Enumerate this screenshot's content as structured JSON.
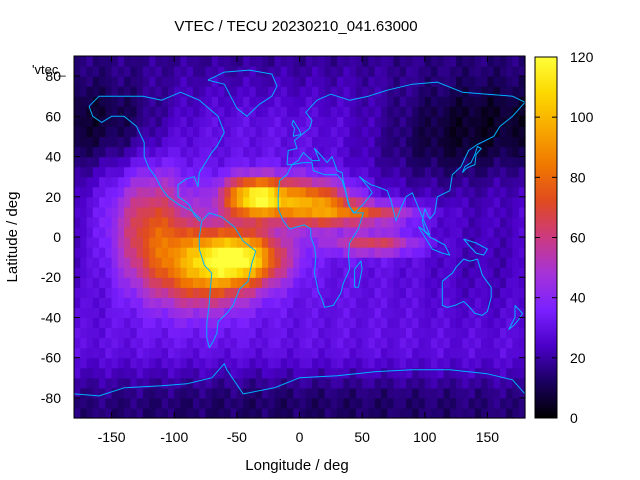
{
  "chart_data": {
    "type": "heatmap",
    "title": "VTEC / TECU 20230210_041.63000",
    "xlabel": "Longitude / deg",
    "ylabel": "Latitude / deg",
    "xlim": [
      -180,
      180
    ],
    "ylim": [
      -90,
      90
    ],
    "x_ticks": [
      -150,
      -100,
      -50,
      0,
      50,
      100,
      150
    ],
    "y_ticks": [
      80,
      60,
      40,
      20,
      0,
      -20,
      -40,
      -60,
      -80
    ],
    "legend_entry": "'vtec_",
    "legend_position": "top-left",
    "colorbar": {
      "min": 0,
      "max": 120,
      "ticks": [
        0,
        20,
        40,
        60,
        80,
        100,
        120
      ],
      "palette": [
        "#000000",
        "#1a005f",
        "#4b00c8",
        "#7a20ff",
        "#a633d8",
        "#cc3a80",
        "#e04a20",
        "#f07800",
        "#f8a800",
        "#fcd800",
        "#ffff3a"
      ]
    },
    "background_vtec": 30,
    "features": [
      {
        "name": "equatorial-anomaly-west-crest",
        "lon": -118,
        "lat": 5,
        "peak_vtec": 70,
        "lon_spread": 22,
        "lat_spread": 20
      },
      {
        "name": "equatorial-anomaly-south-america",
        "lon": -75,
        "lat": -15,
        "peak_vtec": 85,
        "lon_spread": 28,
        "lat_spread": 14
      },
      {
        "name": "northern-crest-atlantic",
        "lon": -35,
        "lat": 20,
        "peak_vtec": 115,
        "lon_spread": 18,
        "lat_spread": 7
      },
      {
        "name": "northern-crest-africa",
        "lon": 10,
        "lat": 17,
        "peak_vtec": 90,
        "lon_spread": 22,
        "lat_spread": 8
      },
      {
        "name": "southern-crest-atlantic",
        "lon": -45,
        "lat": -10,
        "peak_vtec": 95,
        "lon_spread": 24,
        "lat_spread": 9
      },
      {
        "name": "tongue-arabia",
        "lon": 55,
        "lat": 12,
        "peak_vtec": 70,
        "lon_spread": 28,
        "lat_spread": 4
      },
      {
        "name": "tongue-indian-ocean",
        "lon": 60,
        "lat": -3,
        "peak_vtec": 66,
        "lon_spread": 25,
        "lat_spread": 4
      },
      {
        "name": "north-pacific-low",
        "lon": 155,
        "lat": 55,
        "peak_vtec": -20,
        "lon_spread": 45,
        "lat_spread": 18
      },
      {
        "name": "east-asia-low",
        "lon": 95,
        "lat": 45,
        "peak_vtec": -12,
        "lon_spread": 40,
        "lat_spread": 18
      },
      {
        "name": "north-america-arctic-low",
        "lon": -140,
        "lat": 55,
        "peak_vtec": -12,
        "lon_spread": 30,
        "lat_spread": 15
      },
      {
        "name": "australia-pacific-low",
        "lon": 150,
        "lat": -10,
        "peak_vtec": -8,
        "lon_spread": 40,
        "lat_spread": 25
      },
      {
        "name": "south-polar-low",
        "lon": 0,
        "lat": -80,
        "peak_vtec": -8,
        "lon_spread": 180,
        "lat_spread": 10
      }
    ],
    "overlay": "coastlines"
  },
  "colors": {
    "coastline": "#00b0ff",
    "frame": "#000000"
  }
}
